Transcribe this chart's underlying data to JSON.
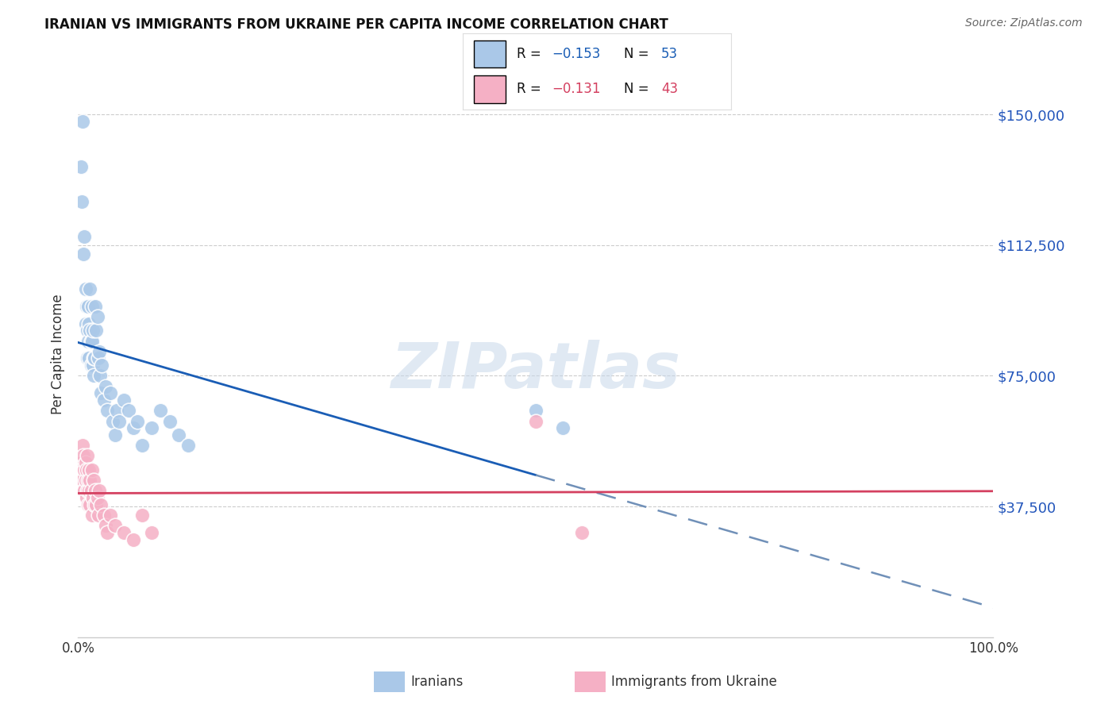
{
  "title": "IRANIAN VS IMMIGRANTS FROM UKRAINE PER CAPITA INCOME CORRELATION CHART",
  "source": "Source: ZipAtlas.com",
  "ylabel": "Per Capita Income",
  "watermark": "ZIPatlas",
  "iranian_r": "−0.153",
  "iranian_n": "53",
  "ukraine_r": "−0.131",
  "ukraine_n": "43",
  "ytick_values": [
    0,
    37500,
    75000,
    112500,
    150000
  ],
  "ytick_labels": [
    "",
    "$37,500",
    "$75,000",
    "$112,500",
    "$150,000"
  ],
  "xlim": [
    0.0,
    1.0
  ],
  "ylim": [
    0,
    162500
  ],
  "iranian_fill": "#aac8e8",
  "ukraine_fill": "#f5b0c5",
  "iranian_line": "#1a5db5",
  "ukraine_line": "#d44060",
  "dash_color": "#7090b8",
  "grid_color": "#cccccc",
  "bg": "#ffffff",
  "title_color": "#111111",
  "source_color": "#666666",
  "label_color": "#333333",
  "axis_label_color": "#2255bb",
  "iranians_x": [
    0.003,
    0.004,
    0.005,
    0.006,
    0.007,
    0.008,
    0.008,
    0.009,
    0.01,
    0.01,
    0.011,
    0.011,
    0.012,
    0.012,
    0.013,
    0.013,
    0.014,
    0.014,
    0.015,
    0.015,
    0.016,
    0.016,
    0.017,
    0.017,
    0.018,
    0.019,
    0.02,
    0.021,
    0.022,
    0.023,
    0.024,
    0.025,
    0.026,
    0.028,
    0.03,
    0.032,
    0.035,
    0.038,
    0.04,
    0.042,
    0.045,
    0.05,
    0.055,
    0.06,
    0.065,
    0.07,
    0.08,
    0.09,
    0.1,
    0.11,
    0.12,
    0.5,
    0.53
  ],
  "iranians_y": [
    135000,
    125000,
    148000,
    110000,
    115000,
    100000,
    90000,
    95000,
    88000,
    80000,
    85000,
    95000,
    80000,
    90000,
    88000,
    100000,
    78000,
    85000,
    95000,
    85000,
    78000,
    88000,
    80000,
    75000,
    80000,
    95000,
    88000,
    92000,
    80000,
    82000,
    75000,
    70000,
    78000,
    68000,
    72000,
    65000,
    70000,
    62000,
    58000,
    65000,
    62000,
    68000,
    65000,
    60000,
    62000,
    55000,
    60000,
    65000,
    62000,
    58000,
    55000,
    65000,
    60000
  ],
  "ukraine_x": [
    0.003,
    0.004,
    0.005,
    0.005,
    0.006,
    0.006,
    0.007,
    0.007,
    0.008,
    0.008,
    0.009,
    0.009,
    0.01,
    0.01,
    0.011,
    0.011,
    0.012,
    0.012,
    0.013,
    0.013,
    0.014,
    0.015,
    0.015,
    0.016,
    0.017,
    0.018,
    0.019,
    0.02,
    0.021,
    0.022,
    0.023,
    0.025,
    0.028,
    0.03,
    0.032,
    0.035,
    0.04,
    0.05,
    0.06,
    0.07,
    0.08,
    0.5,
    0.55
  ],
  "ukraine_y": [
    50000,
    48000,
    55000,
    45000,
    52000,
    42000,
    48000,
    42000,
    50000,
    45000,
    48000,
    40000,
    52000,
    42000,
    45000,
    38000,
    48000,
    42000,
    45000,
    38000,
    42000,
    48000,
    35000,
    40000,
    45000,
    38000,
    42000,
    38000,
    40000,
    35000,
    42000,
    38000,
    35000,
    32000,
    30000,
    35000,
    32000,
    30000,
    28000,
    35000,
    30000,
    62000,
    30000
  ]
}
